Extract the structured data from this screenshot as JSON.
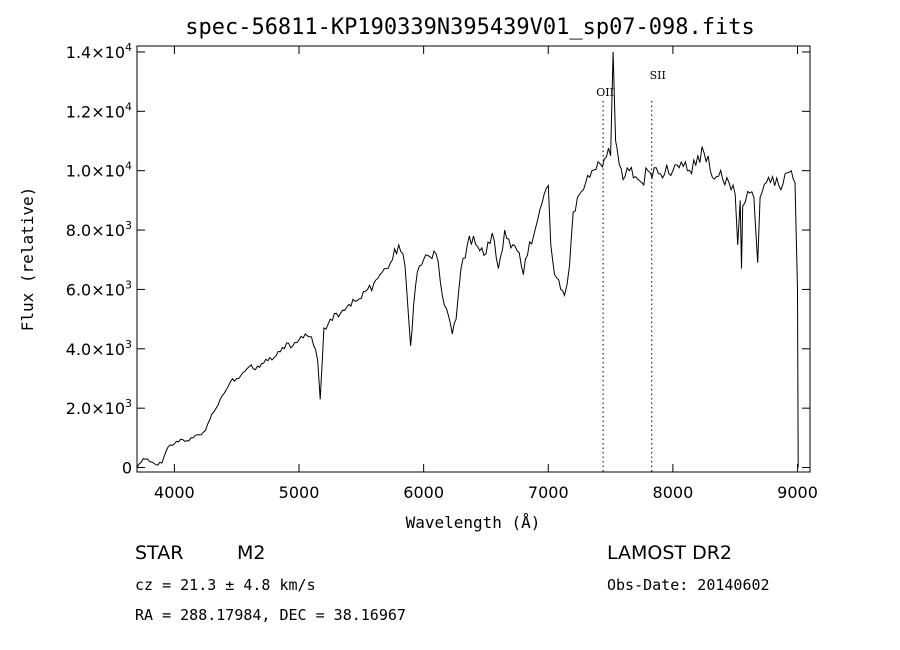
{
  "chart_data": {
    "type": "line",
    "title": "spec-56811-KP190339N395439V01_sp07-098.fits",
    "xlabel": "Wavelength (Å)",
    "ylabel": "Flux (relative)",
    "xlim": [
      3700,
      9100
    ],
    "ylim": [
      -150,
      14200
    ],
    "x_ticks": [
      {
        "value": 4000,
        "label": "4000"
      },
      {
        "value": 5000,
        "label": "5000"
      },
      {
        "value": 6000,
        "label": "6000"
      },
      {
        "value": 7000,
        "label": "7000"
      },
      {
        "value": 8000,
        "label": "8000"
      },
      {
        "value": 9000,
        "label": "9000"
      }
    ],
    "y_ticks": [
      {
        "value": 0,
        "mant": "0",
        "exp": ""
      },
      {
        "value": 2000,
        "mant": "2.0×10",
        "exp": "3"
      },
      {
        "value": 4000,
        "mant": "4.0×10",
        "exp": "3"
      },
      {
        "value": 6000,
        "mant": "6.0×10",
        "exp": "3"
      },
      {
        "value": 8000,
        "mant": "8.0×10",
        "exp": "3"
      },
      {
        "value": 10000,
        "mant": "1.0×10",
        "exp": "4"
      },
      {
        "value": 12000,
        "mant": "1.2×10",
        "exp": "4"
      },
      {
        "value": 14000,
        "mant": "1.4×10",
        "exp": "4"
      }
    ],
    "series": [
      {
        "x": [
          3700,
          3750,
          3800,
          3850,
          3900,
          3950,
          4000,
          4050,
          4100,
          4150,
          4200,
          4250,
          4300,
          4350,
          4400,
          4450,
          4500,
          4550,
          4600,
          4650,
          4700,
          4750,
          4800,
          4850,
          4900,
          4950,
          5000,
          5050,
          5100,
          5150,
          5170,
          5200,
          5250,
          5300,
          5350,
          5400,
          5450,
          5500,
          5550,
          5600,
          5650,
          5700,
          5750,
          5800,
          5850,
          5880,
          5895,
          5920,
          5950,
          6000,
          6050,
          6100,
          6150,
          6200,
          6230,
          6260,
          6300,
          6350,
          6400,
          6450,
          6500,
          6550,
          6600,
          6650,
          6700,
          6750,
          6800,
          6850,
          6900,
          6950,
          7000,
          7020,
          7050,
          7100,
          7130,
          7170,
          7200,
          7250,
          7300,
          7350,
          7400,
          7450,
          7500,
          7520,
          7540,
          7550,
          7570,
          7600,
          7650,
          7700,
          7750,
          7800,
          7850,
          7900,
          7950,
          8000,
          8050,
          8100,
          8150,
          8200,
          8250,
          8300,
          8350,
          8400,
          8450,
          8500,
          8520,
          8540,
          8550,
          8560,
          8600,
          8650,
          8660,
          8680,
          8700,
          8750,
          8800,
          8850,
          8900,
          8950,
          8980,
          9000,
          9005
        ],
        "y": [
          0,
          300,
          200,
          100,
          150,
          700,
          800,
          950,
          900,
          1000,
          1100,
          1250,
          1800,
          2100,
          2500,
          2900,
          3000,
          3200,
          3400,
          3300,
          3500,
          3600,
          3700,
          3900,
          4200,
          4100,
          4300,
          4500,
          4400,
          3600,
          2300,
          4700,
          5000,
          5200,
          5300,
          5500,
          5600,
          5700,
          6000,
          6200,
          6500,
          6700,
          7000,
          7500,
          6800,
          5000,
          4100,
          5500,
          6600,
          7000,
          7100,
          7200,
          5800,
          5100,
          4500,
          5000,
          6700,
          7500,
          7800,
          7300,
          7200,
          7900,
          6700,
          8000,
          7400,
          7300,
          6500,
          7600,
          8100,
          8900,
          9500,
          7500,
          6500,
          6000,
          5800,
          6800,
          8600,
          9200,
          9600,
          10000,
          10300,
          10400,
          10500,
          14000,
          11000,
          10800,
          10200,
          9700,
          10000,
          9800,
          9600,
          10000,
          10100,
          9900,
          10200,
          10000,
          10100,
          10300,
          9900,
          10500,
          10600,
          10000,
          9800,
          9700,
          9600,
          9200,
          7500,
          9000,
          6700,
          8800,
          9300,
          9100,
          8300,
          6900,
          9100,
          9600,
          9800,
          9500,
          9900,
          10000,
          9600,
          6000,
          0
        ]
      }
    ],
    "vlines": [
      {
        "x": 7440,
        "label": "OII"
      },
      {
        "x": 7830,
        "label": "SII"
      }
    ],
    "info": {
      "class_label": "STAR",
      "subclass_label": "M2",
      "cz_text": "cz = 21.3 ± 4.8 km/s",
      "coords_text": "RA = 288.17984, DEC =  38.16967",
      "survey_text": "LAMOST DR2",
      "obsdate_text": "Obs-Date: 20140602"
    },
    "grid": false,
    "legend": "none"
  }
}
